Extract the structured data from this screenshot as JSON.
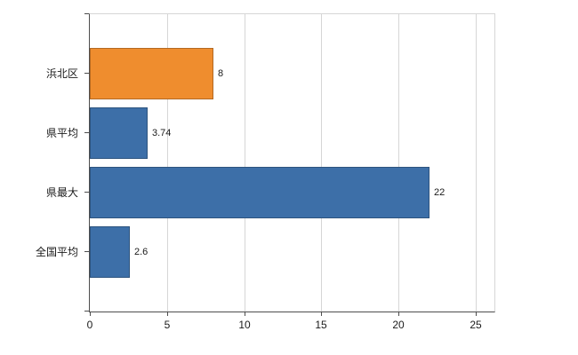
{
  "chart_data": {
    "type": "bar",
    "orientation": "horizontal",
    "categories": [
      "浜北区",
      "県平均",
      "県最大",
      "全国平均"
    ],
    "values": [
      8,
      3.74,
      22,
      2.6
    ],
    "value_labels": [
      "8",
      "3.74",
      "22",
      "2.6"
    ],
    "bar_colors": [
      "#ef8d2e",
      "#3d6fa8",
      "#3d6fa8",
      "#3d6fa8"
    ],
    "x_ticks": [
      0,
      5,
      10,
      15,
      20,
      25
    ],
    "x_tick_labels": [
      "0",
      "5",
      "10",
      "15",
      "20",
      "25"
    ],
    "axis_max": 26.2,
    "grid": true,
    "legend": false,
    "title": "",
    "xlabel": "",
    "ylabel": ""
  },
  "colors": {
    "axis": "#4d4d4d",
    "gridline": "#d6d6d6",
    "background": "#ffffff",
    "text": "#1a1a1a"
  }
}
